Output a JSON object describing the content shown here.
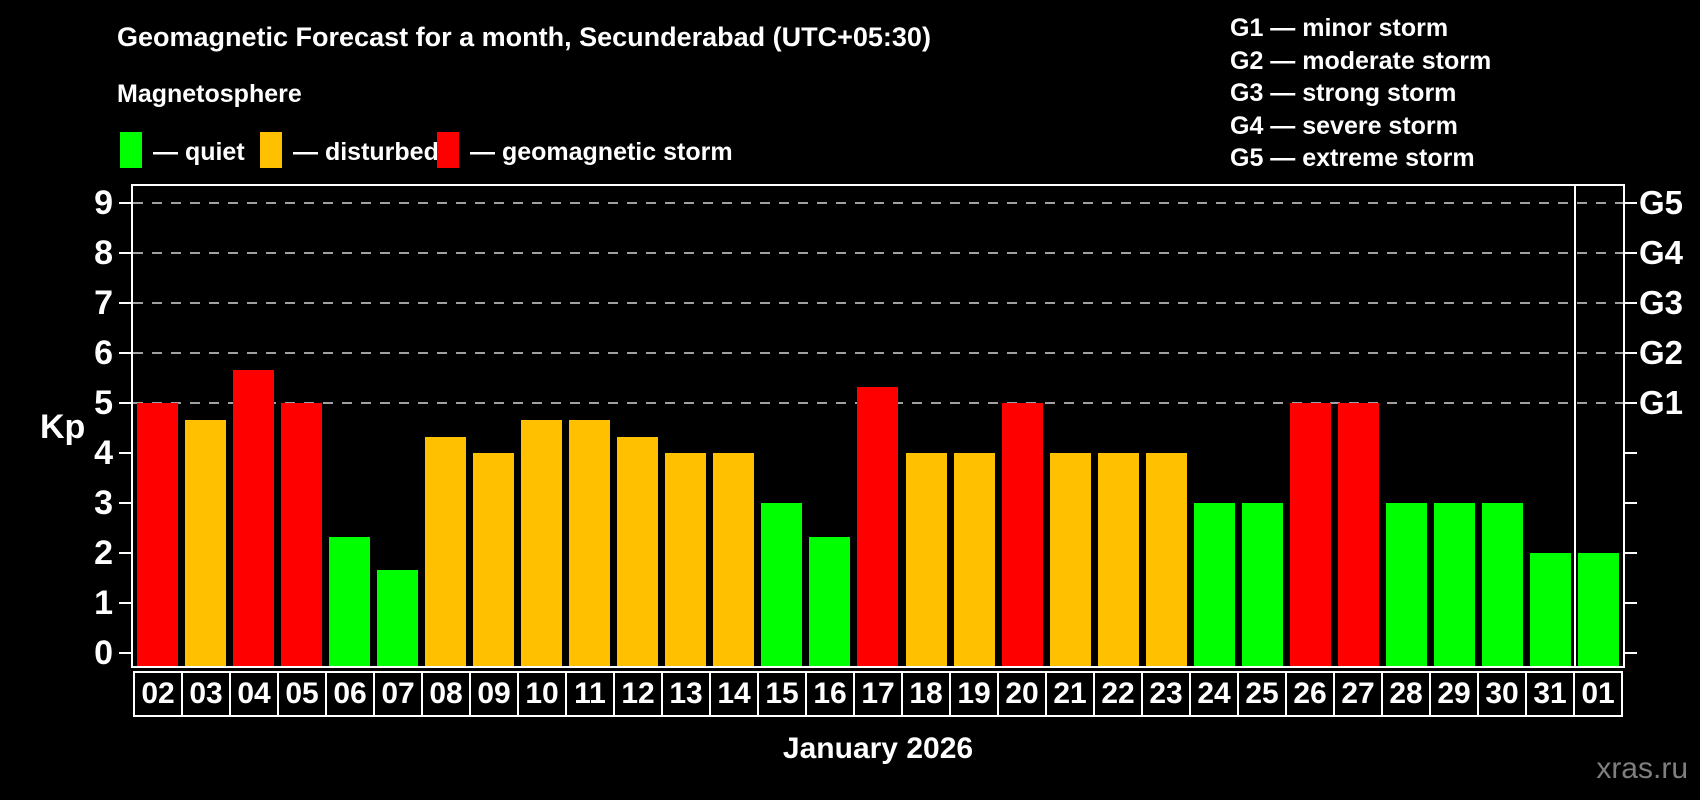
{
  "title": "Geomagnetic Forecast for a month, Secunderabad (UTC+05:30)",
  "subtitle": "Magnetosphere",
  "legend": {
    "items": [
      {
        "key": "quiet",
        "label": "— quiet"
      },
      {
        "key": "disturbed",
        "label": "— disturbed"
      },
      {
        "key": "storm",
        "label": "— geomagnetic storm"
      }
    ]
  },
  "g_scale_legend": [
    "G1 — minor storm",
    "G2 — moderate storm",
    "G3 — strong storm",
    "G4 — severe storm",
    "G5 — extreme storm"
  ],
  "colors": {
    "background": "#000000",
    "axis": "#ffffff",
    "grid": "#a0a0a0",
    "text": "#ffffff",
    "watermark": "#7f7f7f",
    "quiet": "#00ff00",
    "disturbed": "#ffc000",
    "storm": "#ff0000"
  },
  "axes": {
    "y_title": "Kp",
    "y_ticks": [
      0,
      1,
      2,
      3,
      4,
      5,
      6,
      7,
      8,
      9
    ],
    "grid_levels": [
      5,
      6,
      7,
      8,
      9
    ],
    "right_labels": [
      {
        "kp": 5,
        "label": "G1"
      },
      {
        "kp": 6,
        "label": "G2"
      },
      {
        "kp": 7,
        "label": "G3"
      },
      {
        "kp": 8,
        "label": "G4"
      },
      {
        "kp": 9,
        "label": "G5"
      }
    ]
  },
  "chart_data": {
    "type": "bar",
    "title": "Geomagnetic Forecast for a month, Secunderabad (UTC+05:30)",
    "xlabel": "January 2026",
    "ylabel": "Kp",
    "ylim": [
      0,
      9
    ],
    "grid": "dashed horizontal lines at Kp 5-9 (G1-G5 levels)",
    "legend_position": "top-left",
    "categories": [
      "02",
      "03",
      "04",
      "05",
      "06",
      "07",
      "08",
      "09",
      "10",
      "11",
      "12",
      "13",
      "14",
      "15",
      "16",
      "17",
      "18",
      "19",
      "20",
      "21",
      "22",
      "23",
      "24",
      "25",
      "26",
      "27",
      "28",
      "29",
      "30",
      "31",
      "01"
    ],
    "values": [
      5,
      4.67,
      5.67,
      5,
      2.33,
      1.67,
      4.33,
      4,
      4.67,
      4.67,
      4.33,
      4,
      4,
      3,
      2.33,
      5.33,
      4,
      4,
      5,
      4,
      4,
      4,
      3,
      3,
      5,
      5,
      3,
      3,
      3,
      2,
      2
    ],
    "statuses": [
      "storm",
      "disturbed",
      "storm",
      "storm",
      "quiet",
      "quiet",
      "disturbed",
      "disturbed",
      "disturbed",
      "disturbed",
      "disturbed",
      "disturbed",
      "disturbed",
      "quiet",
      "quiet",
      "storm",
      "disturbed",
      "disturbed",
      "storm",
      "disturbed",
      "disturbed",
      "disturbed",
      "quiet",
      "quiet",
      "storm",
      "storm",
      "quiet",
      "quiet",
      "quiet",
      "quiet",
      "quiet"
    ],
    "month_divider_between": [
      "31",
      "01"
    ]
  },
  "footer": {
    "month_label": "January 2026",
    "watermark": "xras.ru"
  }
}
